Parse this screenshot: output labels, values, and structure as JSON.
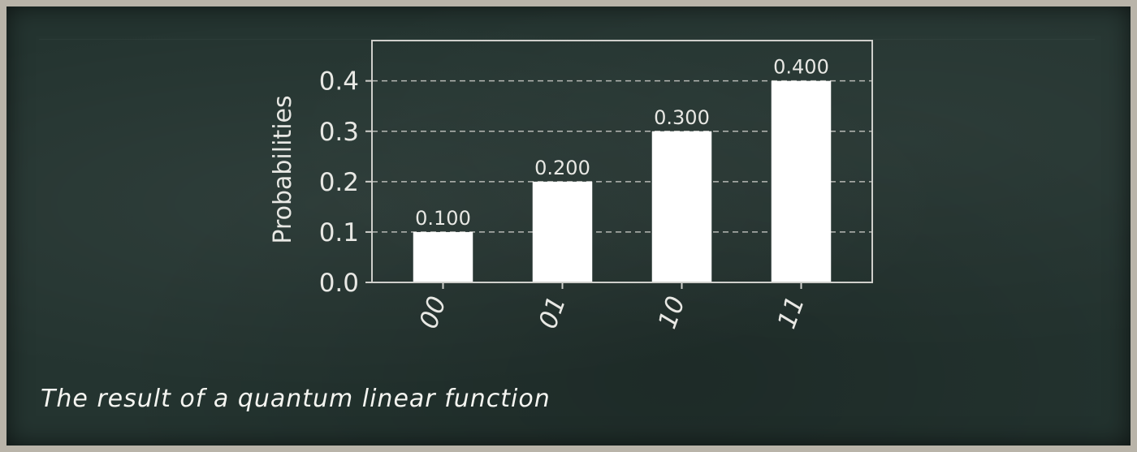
{
  "caption": "The result of a quantum linear function",
  "colors": {
    "board": "#243430",
    "frame": "#b9b4a9",
    "bar": "#ffffff",
    "text": "#e8e8e4",
    "grid": "#cfcfcb"
  },
  "chart_data": {
    "type": "bar",
    "categories": [
      "00",
      "01",
      "10",
      "11"
    ],
    "values": [
      0.1,
      0.2,
      0.3,
      0.4
    ],
    "data_labels": [
      "0.100",
      "0.200",
      "0.300",
      "0.400"
    ],
    "ylabel": "Probabilities",
    "xlabel": "",
    "title": "",
    "ylim": [
      0,
      0.48
    ],
    "yticks": [
      0.0,
      0.1,
      0.2,
      0.3,
      0.4
    ],
    "ytick_labels": [
      "0.0",
      "0.1",
      "0.2",
      "0.3",
      "0.4"
    ],
    "grid": "horizontal dashed"
  }
}
